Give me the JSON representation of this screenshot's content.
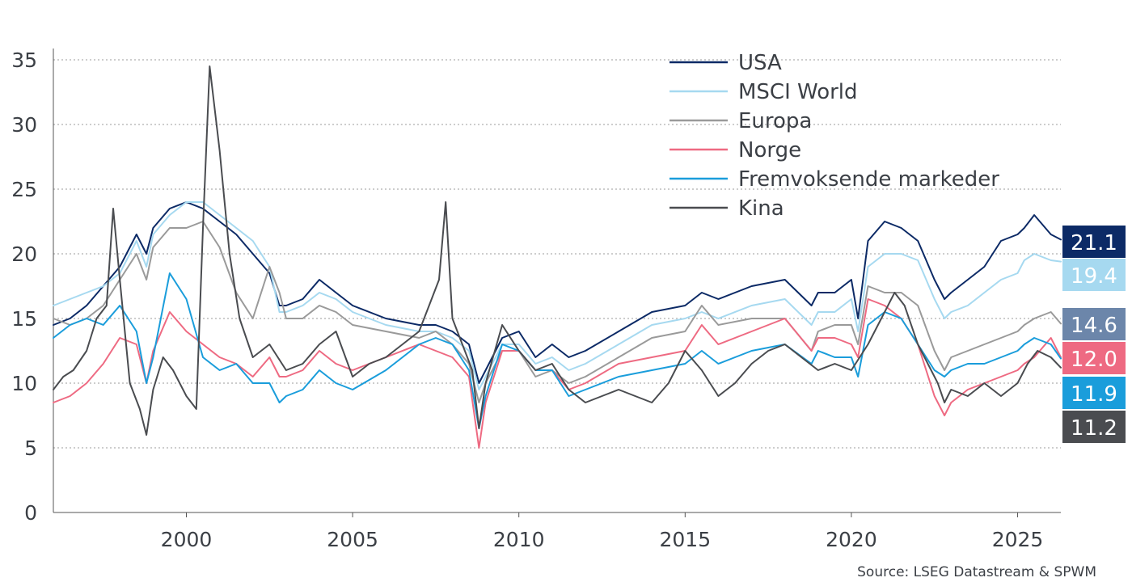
{
  "chart_data": {
    "type": "line",
    "title": "",
    "xlabel": "",
    "ylabel": "",
    "xlim": [
      1996.0,
      2026.3
    ],
    "ylim": [
      0,
      35
    ],
    "y_ticks": [
      "0",
      "5",
      "10",
      "15",
      "20",
      "25",
      "30",
      "35"
    ],
    "x_ticks": [
      "2000",
      "2005",
      "2010",
      "2015",
      "2020",
      "2025"
    ],
    "grid": "horizontal dotted",
    "legend_position": "top-right",
    "source": "Source: LSEG Datastream & SPWM",
    "series": [
      {
        "name": "USA",
        "color": "#0c2a66",
        "end_label": "21.1",
        "end_label_color": "#0c2a66",
        "x": [
          1996.0,
          1996.5,
          1997.0,
          1997.5,
          1998.0,
          1998.5,
          1998.8,
          1999.0,
          1999.5,
          2000.0,
          2000.5,
          2001.0,
          2001.5,
          2002.0,
          2002.5,
          2002.8,
          2003.0,
          2003.5,
          2004.0,
          2004.5,
          2005.0,
          2006.0,
          2007.0,
          2007.5,
          2008.0,
          2008.5,
          2008.8,
          2009.0,
          2009.5,
          2010.0,
          2010.5,
          2011.0,
          2011.5,
          2012.0,
          2013.0,
          2014.0,
          2015.0,
          2015.5,
          2016.0,
          2017.0,
          2018.0,
          2018.8,
          2019.0,
          2019.5,
          2020.0,
          2020.2,
          2020.5,
          2021.0,
          2021.5,
          2022.0,
          2022.5,
          2022.8,
          2023.0,
          2023.5,
          2024.0,
          2024.5,
          2025.0,
          2025.2,
          2025.5,
          2026.0,
          2026.3
        ],
        "values": [
          14.5,
          15.0,
          16.0,
          17.5,
          19.0,
          21.5,
          20.0,
          22.0,
          23.5,
          24.0,
          23.5,
          22.5,
          21.5,
          20.0,
          18.5,
          16.0,
          16.0,
          16.5,
          18.0,
          17.0,
          16.0,
          15.0,
          14.5,
          14.5,
          14.0,
          13.0,
          10.0,
          11.0,
          13.5,
          14.0,
          12.0,
          13.0,
          12.0,
          12.5,
          14.0,
          15.5,
          16.0,
          17.0,
          16.5,
          17.5,
          18.0,
          16.0,
          17.0,
          17.0,
          18.0,
          15.0,
          21.0,
          22.5,
          22.0,
          21.0,
          18.0,
          16.5,
          17.0,
          18.0,
          19.0,
          21.0,
          21.5,
          22.0,
          23.0,
          21.5,
          21.1
        ]
      },
      {
        "name": "MSCI World",
        "color": "#a6d9f0",
        "end_label": "19.4",
        "end_label_color": "#a6d9f0",
        "x": [
          1996.0,
          1996.5,
          1997.0,
          1997.5,
          1998.0,
          1998.5,
          1998.8,
          1999.0,
          1999.5,
          2000.0,
          2000.5,
          2001.0,
          2001.5,
          2002.0,
          2002.5,
          2002.8,
          2003.0,
          2003.5,
          2004.0,
          2004.5,
          2005.0,
          2006.0,
          2007.0,
          2007.5,
          2008.0,
          2008.5,
          2008.8,
          2009.0,
          2009.5,
          2010.0,
          2010.5,
          2011.0,
          2011.5,
          2012.0,
          2013.0,
          2014.0,
          2015.0,
          2015.5,
          2016.0,
          2017.0,
          2018.0,
          2018.8,
          2019.0,
          2019.5,
          2020.0,
          2020.2,
          2020.5,
          2021.0,
          2021.5,
          2022.0,
          2022.5,
          2022.8,
          2023.0,
          2023.5,
          2024.0,
          2024.5,
          2025.0,
          2025.2,
          2025.5,
          2026.0,
          2026.3
        ],
        "values": [
          16.0,
          16.5,
          17.0,
          17.5,
          18.5,
          21.0,
          19.0,
          21.5,
          23.0,
          24.0,
          24.0,
          23.0,
          22.0,
          21.0,
          19.0,
          15.5,
          15.5,
          16.0,
          17.0,
          16.5,
          15.5,
          14.5,
          14.0,
          14.0,
          13.5,
          12.5,
          9.5,
          10.5,
          13.0,
          13.0,
          11.5,
          12.0,
          11.0,
          11.5,
          13.0,
          14.5,
          15.0,
          15.5,
          15.0,
          16.0,
          16.5,
          14.5,
          15.5,
          15.5,
          16.5,
          14.0,
          19.0,
          20.0,
          20.0,
          19.5,
          16.5,
          15.0,
          15.5,
          16.0,
          17.0,
          18.0,
          18.5,
          19.5,
          20.0,
          19.5,
          19.4
        ]
      },
      {
        "name": "Europa",
        "color": "#9a9a9a",
        "end_label": "14.6",
        "end_label_color": "#6c86aa",
        "x": [
          1996.0,
          1996.5,
          1997.0,
          1997.5,
          1998.0,
          1998.5,
          1998.8,
          1999.0,
          1999.5,
          2000.0,
          2000.5,
          2001.0,
          2001.5,
          2002.0,
          2002.5,
          2002.8,
          2003.0,
          2003.5,
          2004.0,
          2004.5,
          2005.0,
          2006.0,
          2007.0,
          2007.5,
          2008.0,
          2008.5,
          2008.8,
          2009.0,
          2009.5,
          2010.0,
          2010.5,
          2011.0,
          2011.5,
          2012.0,
          2013.0,
          2014.0,
          2015.0,
          2015.5,
          2016.0,
          2017.0,
          2018.0,
          2018.8,
          2019.0,
          2019.5,
          2020.0,
          2020.2,
          2020.5,
          2021.0,
          2021.5,
          2022.0,
          2022.5,
          2022.8,
          2023.0,
          2023.5,
          2024.0,
          2024.5,
          2025.0,
          2025.2,
          2025.5,
          2026.0,
          2026.3
        ],
        "values": [
          15.0,
          14.5,
          15.0,
          16.0,
          18.0,
          20.0,
          18.0,
          20.5,
          22.0,
          22.0,
          22.5,
          20.5,
          17.0,
          15.0,
          19.0,
          17.0,
          15.0,
          15.0,
          16.0,
          15.5,
          14.5,
          14.0,
          13.5,
          14.0,
          13.0,
          11.5,
          8.5,
          10.0,
          12.5,
          12.5,
          10.5,
          11.0,
          10.0,
          10.5,
          12.0,
          13.5,
          14.0,
          16.0,
          14.5,
          15.0,
          15.0,
          12.5,
          14.0,
          14.5,
          14.5,
          13.0,
          17.5,
          17.0,
          17.0,
          16.0,
          12.5,
          11.0,
          12.0,
          12.5,
          13.0,
          13.5,
          14.0,
          14.5,
          15.0,
          15.5,
          14.6
        ]
      },
      {
        "name": "Norge",
        "color": "#ee6a82",
        "end_label": "12.0",
        "end_label_color": "#ee6a82",
        "x": [
          1996.0,
          1996.5,
          1997.0,
          1997.5,
          1998.0,
          1998.5,
          1998.8,
          1999.0,
          1999.5,
          2000.0,
          2000.5,
          2001.0,
          2001.5,
          2002.0,
          2002.5,
          2002.8,
          2003.0,
          2003.5,
          2004.0,
          2004.5,
          2005.0,
          2006.0,
          2007.0,
          2007.5,
          2008.0,
          2008.5,
          2008.8,
          2009.0,
          2009.5,
          2010.0,
          2010.5,
          2011.0,
          2011.5,
          2012.0,
          2013.0,
          2014.0,
          2015.0,
          2015.5,
          2016.0,
          2017.0,
          2018.0,
          2018.8,
          2019.0,
          2019.5,
          2020.0,
          2020.2,
          2020.5,
          2021.0,
          2021.5,
          2022.0,
          2022.5,
          2022.8,
          2023.0,
          2023.5,
          2024.0,
          2024.5,
          2025.0,
          2025.2,
          2025.5,
          2026.0,
          2026.3
        ],
        "values": [
          8.5,
          9.0,
          10.0,
          11.5,
          13.5,
          13.0,
          10.0,
          12.5,
          15.5,
          14.0,
          13.0,
          12.0,
          11.5,
          10.5,
          12.0,
          10.5,
          10.5,
          11.0,
          12.5,
          11.5,
          11.0,
          12.0,
          13.0,
          12.5,
          12.0,
          10.5,
          5.0,
          8.5,
          12.5,
          12.5,
          11.0,
          11.0,
          9.5,
          10.0,
          11.5,
          12.0,
          12.5,
          14.5,
          13.0,
          14.0,
          15.0,
          12.5,
          13.5,
          13.5,
          13.0,
          12.0,
          16.5,
          16.0,
          15.0,
          13.0,
          9.0,
          7.5,
          8.5,
          9.5,
          10.0,
          10.5,
          11.0,
          11.5,
          12.0,
          13.5,
          12.0
        ]
      },
      {
        "name": "Fremvoksende markeder",
        "color": "#1a9ddb",
        "end_label": "11.9",
        "end_label_color": "#1a9ddb",
        "x": [
          1996.0,
          1996.5,
          1997.0,
          1997.5,
          1998.0,
          1998.5,
          1998.8,
          1999.0,
          1999.5,
          2000.0,
          2000.5,
          2001.0,
          2001.5,
          2002.0,
          2002.5,
          2002.8,
          2003.0,
          2003.5,
          2004.0,
          2004.5,
          2005.0,
          2006.0,
          2007.0,
          2007.5,
          2008.0,
          2008.5,
          2008.8,
          2009.0,
          2009.5,
          2010.0,
          2010.5,
          2011.0,
          2011.5,
          2012.0,
          2013.0,
          2014.0,
          2015.0,
          2015.5,
          2016.0,
          2017.0,
          2018.0,
          2018.8,
          2019.0,
          2019.5,
          2020.0,
          2020.2,
          2020.5,
          2021.0,
          2021.5,
          2022.0,
          2022.5,
          2022.8,
          2023.0,
          2023.5,
          2024.0,
          2024.5,
          2025.0,
          2025.2,
          2025.5,
          2026.0,
          2026.3
        ],
        "values": [
          13.5,
          14.5,
          15.0,
          14.5,
          16.0,
          14.0,
          10.0,
          12.0,
          18.5,
          16.5,
          12.0,
          11.0,
          11.5,
          10.0,
          10.0,
          8.5,
          9.0,
          9.5,
          11.0,
          10.0,
          9.5,
          11.0,
          13.0,
          13.5,
          13.0,
          11.0,
          6.5,
          9.0,
          13.0,
          12.5,
          11.0,
          11.0,
          9.0,
          9.5,
          10.5,
          11.0,
          11.5,
          12.5,
          11.5,
          12.5,
          13.0,
          11.5,
          12.5,
          12.0,
          12.0,
          10.5,
          14.5,
          15.5,
          15.0,
          13.0,
          11.0,
          10.5,
          11.0,
          11.5,
          11.5,
          12.0,
          12.5,
          13.0,
          13.5,
          13.0,
          11.9
        ]
      },
      {
        "name": "Kina",
        "color": "#4a4c50",
        "end_label": "11.2",
        "end_label_color": "#4a4c50",
        "x": [
          1996.0,
          1996.3,
          1996.6,
          1997.0,
          1997.3,
          1997.6,
          1997.8,
          1998.0,
          1998.3,
          1998.6,
          1998.8,
          1999.0,
          1999.3,
          1999.6,
          2000.0,
          2000.3,
          2000.5,
          2000.7,
          2001.0,
          2001.3,
          2001.6,
          2002.0,
          2002.5,
          2003.0,
          2003.5,
          2004.0,
          2004.5,
          2005.0,
          2005.5,
          2006.0,
          2006.5,
          2007.0,
          2007.3,
          2007.6,
          2007.8,
          2008.0,
          2008.3,
          2008.6,
          2008.8,
          2009.0,
          2009.5,
          2010.0,
          2010.5,
          2011.0,
          2011.5,
          2012.0,
          2012.5,
          2013.0,
          2013.5,
          2014.0,
          2014.5,
          2015.0,
          2015.5,
          2016.0,
          2016.5,
          2017.0,
          2017.5,
          2018.0,
          2018.5,
          2019.0,
          2019.5,
          2020.0,
          2020.5,
          2021.0,
          2021.3,
          2021.6,
          2022.0,
          2022.3,
          2022.6,
          2022.8,
          2023.0,
          2023.5,
          2024.0,
          2024.5,
          2025.0,
          2025.3,
          2025.6,
          2026.0,
          2026.3
        ],
        "values": [
          9.5,
          10.5,
          11.0,
          12.5,
          15.0,
          16.0,
          23.5,
          18.0,
          10.0,
          8.0,
          6.0,
          9.5,
          12.0,
          11.0,
          9.0,
          8.0,
          22.0,
          34.5,
          28.0,
          20.0,
          15.0,
          12.0,
          13.0,
          11.0,
          11.5,
          13.0,
          14.0,
          10.5,
          11.5,
          12.0,
          13.0,
          14.0,
          16.0,
          18.0,
          24.0,
          15.0,
          13.0,
          11.0,
          6.5,
          10.0,
          14.5,
          12.5,
          11.0,
          11.5,
          9.5,
          8.5,
          9.0,
          9.5,
          9.0,
          8.5,
          10.0,
          12.5,
          11.0,
          9.0,
          10.0,
          11.5,
          12.5,
          13.0,
          12.0,
          11.0,
          11.5,
          11.0,
          13.0,
          15.5,
          17.0,
          16.0,
          13.0,
          11.5,
          10.0,
          8.5,
          9.5,
          9.0,
          10.0,
          9.0,
          10.0,
          11.5,
          12.5,
          12.0,
          11.2
        ]
      }
    ]
  }
}
